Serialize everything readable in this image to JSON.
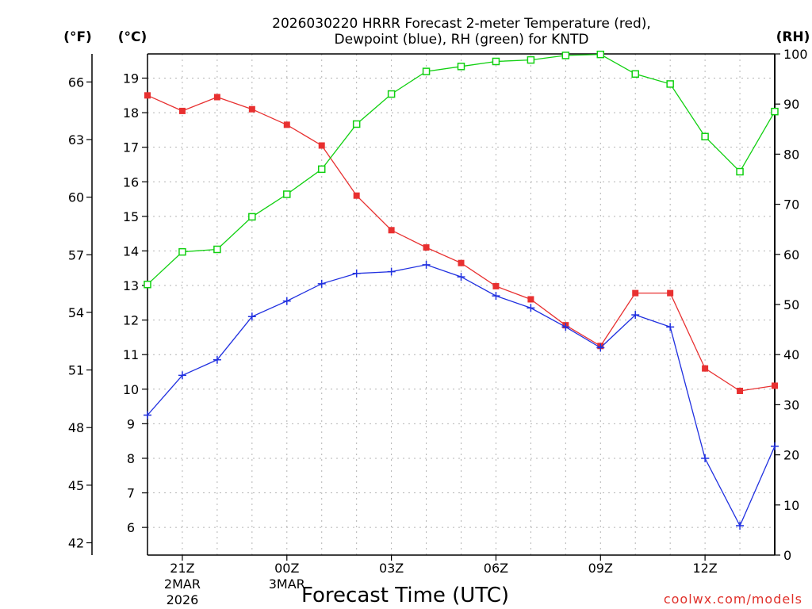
{
  "chart_data": {
    "type": "line",
    "title_line1": "2026030220 HRRR Forecast 2-meter Temperature (red),",
    "title_line2": "Dewpoint (blue), RH (green) for KNTD",
    "xlabel": "Forecast Time (UTC)",
    "watermark": "coolwx.com/models",
    "unit_f": "(°F)",
    "unit_c": "(°C)",
    "unit_rh": "(RH)",
    "x": [
      20,
      21,
      22,
      23,
      24,
      25,
      26,
      27,
      28,
      29,
      30,
      31,
      32,
      33,
      34,
      35,
      36,
      37,
      38
    ],
    "xlim": [
      20,
      38
    ],
    "x_ticks": [
      {
        "x": 21,
        "line1": "21Z",
        "line2": "2MAR",
        "line3": "2026"
      },
      {
        "x": 24,
        "line1": "00Z",
        "line2": "3MAR",
        "line3": ""
      },
      {
        "x": 27,
        "line1": "03Z",
        "line2": "",
        "line3": ""
      },
      {
        "x": 30,
        "line1": "06Z",
        "line2": "",
        "line3": ""
      },
      {
        "x": 33,
        "line1": "09Z",
        "line2": "",
        "line3": ""
      },
      {
        "x": 36,
        "line1": "12Z",
        "line2": "",
        "line3": ""
      }
    ],
    "c_range": [
      5.2,
      19.7
    ],
    "c_ticks": [
      "6",
      "7",
      "8",
      "9",
      "10",
      "11",
      "12",
      "13",
      "14",
      "15",
      "16",
      "17",
      "18",
      "19"
    ],
    "f_ticks": [
      "42",
      "45",
      "48",
      "51",
      "54",
      "57",
      "60",
      "63",
      "66"
    ],
    "rh_range": [
      0,
      100
    ],
    "rh_ticks": [
      "0",
      "10",
      "20",
      "30",
      "40",
      "50",
      "60",
      "70",
      "80",
      "90",
      "100"
    ],
    "series": [
      {
        "name": "Temperature",
        "unit": "C",
        "color": "#e83030",
        "marker": "filled-square",
        "values": [
          18.5,
          18.05,
          18.45,
          18.1,
          17.65,
          17.05,
          15.6,
          14.6,
          14.1,
          13.65,
          12.98,
          12.6,
          11.85,
          11.25,
          12.78,
          12.78,
          10.6,
          9.95,
          10.1
        ]
      },
      {
        "name": "Dewpoint",
        "unit": "C",
        "color": "#2030e0",
        "marker": "plus",
        "values": [
          9.25,
          10.4,
          10.85,
          12.1,
          12.55,
          13.05,
          13.35,
          13.4,
          13.6,
          13.25,
          12.7,
          12.35,
          11.8,
          11.2,
          12.15,
          11.8,
          8.0,
          6.05,
          8.35
        ]
      },
      {
        "name": "RH",
        "unit": "%",
        "color": "#10d010",
        "marker": "open-square",
        "values": [
          54,
          60.5,
          61,
          67.5,
          72,
          77,
          86,
          92,
          96.5,
          97.5,
          98.5,
          98.8,
          99.7,
          99.9,
          96,
          94,
          83.5,
          76.5,
          88.5
        ]
      }
    ]
  }
}
